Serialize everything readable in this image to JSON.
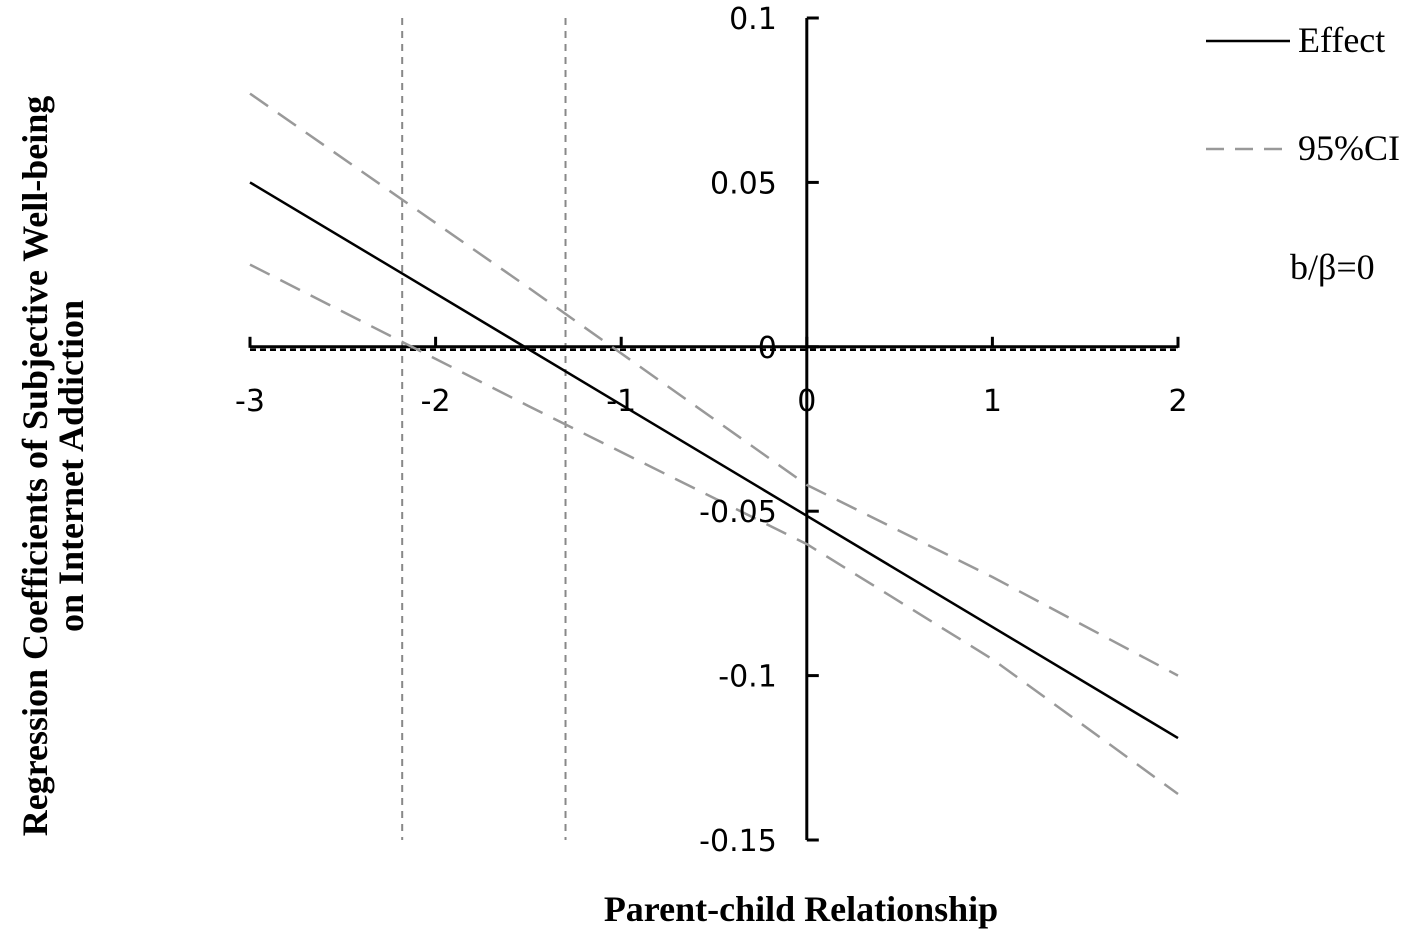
{
  "chart_data": {
    "type": "line",
    "title": "",
    "xlabel": "Parent-child Relationship",
    "ylabel_lines": [
      "Regression Coefficients of Subjective Well-being",
      "on Internet Addiction"
    ],
    "xlim": [
      -3,
      2
    ],
    "ylim": [
      -0.15,
      0.1
    ],
    "x_ticks": [
      -3,
      -2,
      -1,
      0,
      1,
      2
    ],
    "x_tick_labels": [
      "-3",
      "-2",
      "-1",
      "0",
      "1",
      "2"
    ],
    "y_ticks": [
      0.1,
      0.05,
      0,
      -0.05,
      -0.1,
      -0.15
    ],
    "y_tick_labels": [
      "0.1",
      "0.05",
      "0",
      "-0.05",
      "-0.1",
      "-0.15"
    ],
    "grid": false,
    "legend_position": "top-right",
    "series": [
      {
        "name": "Effect",
        "style": "solid",
        "color": "#000000",
        "x": [
          -3,
          2
        ],
        "y": [
          0.05,
          -0.119
        ]
      },
      {
        "name": "95%CI",
        "style": "dashed",
        "color": "#999999",
        "x": [
          -3,
          -1.5,
          0,
          1,
          2
        ],
        "y": [
          0.077,
          0.018,
          -0.042,
          -0.07,
          -0.1
        ]
      },
      {
        "name": "",
        "style": "dashed",
        "color": "#999999",
        "x": [
          -3,
          -1.5,
          0,
          1,
          2
        ],
        "y": [
          0.025,
          -0.018,
          -0.06,
          -0.095,
          -0.136
        ]
      }
    ],
    "reference_lines": {
      "horizontal": {
        "y": 0,
        "style": "dashed",
        "color": "#000000"
      },
      "vertical": [
        {
          "x": -2.18,
          "style": "dashed",
          "color": "#888888"
        },
        {
          "x": -1.3,
          "style": "dashed",
          "color": "#888888"
        }
      ]
    },
    "legend": [
      {
        "label": "Effect",
        "style": "solid",
        "color": "#000000"
      },
      {
        "label": "95%CI",
        "style": "dashed",
        "color": "#999999"
      },
      {
        "label": "b/β=0",
        "style": "dashed",
        "color": "#000000"
      }
    ]
  }
}
